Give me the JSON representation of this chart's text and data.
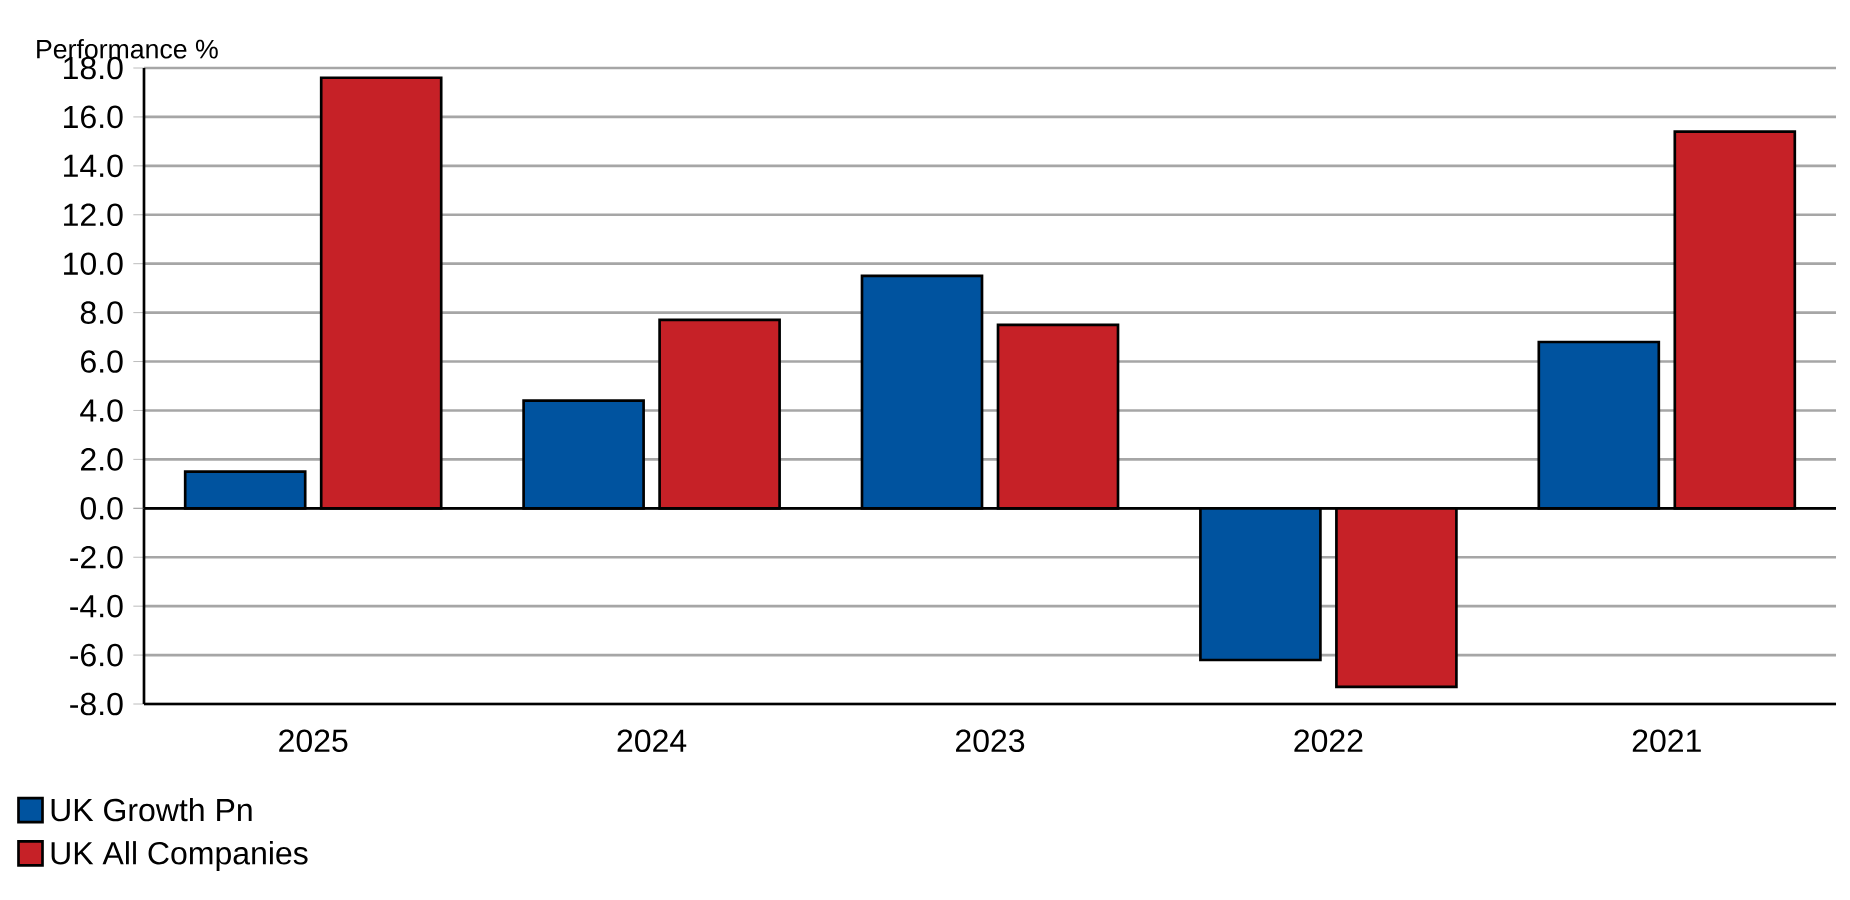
{
  "chart_data": {
    "type": "bar",
    "ylabel": "Performance %",
    "categories": [
      "2025",
      "2024",
      "2023",
      "2022",
      "2021"
    ],
    "series": [
      {
        "name": "UK Growth Pn",
        "color": "#00539f",
        "values": [
          1.5,
          4.4,
          9.5,
          -6.2,
          6.8
        ]
      },
      {
        "name": "UK All Companies",
        "color": "#c62127",
        "values": [
          17.6,
          7.7,
          7.5,
          -7.3,
          15.4
        ]
      }
    ],
    "ylim": [
      -8,
      18
    ],
    "yticks": [
      {
        "value": -8,
        "label": "-8.0"
      },
      {
        "value": -6,
        "label": "-6.0"
      },
      {
        "value": -4,
        "label": "-4.0"
      },
      {
        "value": -2,
        "label": "-2.0"
      },
      {
        "value": 0,
        "label": "0.0"
      },
      {
        "value": 2,
        "label": "2.0"
      },
      {
        "value": 4,
        "label": "4.0"
      },
      {
        "value": 6,
        "label": "6.0"
      },
      {
        "value": 8,
        "label": "8.0"
      },
      {
        "value": 10,
        "label": "10.0"
      },
      {
        "value": 12,
        "label": "12.0"
      },
      {
        "value": 14,
        "label": "14.0"
      },
      {
        "value": 16,
        "label": "16.0"
      },
      {
        "value": 18,
        "label": "18.0"
      }
    ],
    "grid": "y",
    "legend": "bottom left"
  }
}
